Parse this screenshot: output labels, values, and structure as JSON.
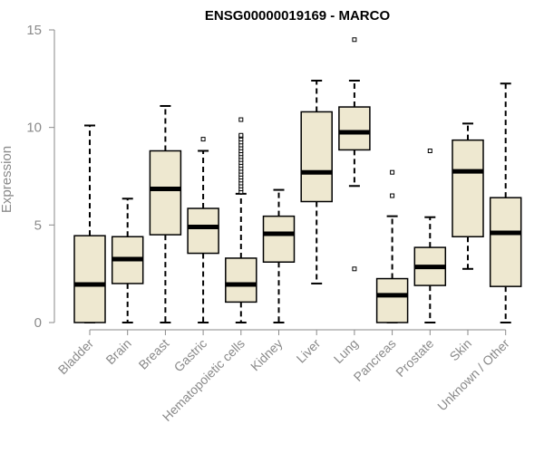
{
  "chart_data": {
    "type": "box",
    "title": "ENSG00000019169 - MARCO",
    "xlabel": "",
    "ylabel": "Expression",
    "ylim": [
      0,
      15
    ],
    "yticks": [
      "0",
      "5",
      "10",
      "15"
    ],
    "grid": false,
    "box_color": "#EEE8D0",
    "categories": [
      "Bladder",
      "Brain",
      "Breast",
      "Gastric",
      "Hematopoietic cells",
      "Kidney",
      "Liver",
      "Lung",
      "Pancreas",
      "Prostate",
      "Skin",
      "Unknown / Other"
    ],
    "boxes": [
      {
        "whislo": 0.0,
        "q1": 0.0,
        "med": 1.95,
        "q3": 4.45,
        "whishi": 10.1,
        "fliers": []
      },
      {
        "whislo": 0.0,
        "q1": 2.0,
        "med": 3.25,
        "q3": 4.4,
        "whishi": 6.35,
        "fliers": []
      },
      {
        "whislo": 0.0,
        "q1": 4.5,
        "med": 6.85,
        "q3": 8.8,
        "whishi": 11.1,
        "fliers": []
      },
      {
        "whislo": 0.0,
        "q1": 3.55,
        "med": 4.9,
        "q3": 5.85,
        "whishi": 8.8,
        "fliers": [
          9.4
        ]
      },
      {
        "whislo": 0.0,
        "q1": 1.05,
        "med": 1.95,
        "q3": 3.3,
        "whishi": 6.6,
        "fliers": [
          6.7,
          6.85,
          7.0,
          7.15,
          7.3,
          7.45,
          7.6,
          7.75,
          7.9,
          8.05,
          8.2,
          8.35,
          8.5,
          8.65,
          8.8,
          8.95,
          9.1,
          9.25,
          9.4,
          9.55,
          9.6,
          10.4
        ]
      },
      {
        "whislo": 0.0,
        "q1": 3.1,
        "med": 4.55,
        "q3": 5.45,
        "whishi": 6.8,
        "fliers": []
      },
      {
        "whislo": 2.0,
        "q1": 6.2,
        "med": 7.7,
        "q3": 10.8,
        "whishi": 12.4,
        "fliers": []
      },
      {
        "whislo": 7.0,
        "q1": 8.85,
        "med": 9.75,
        "q3": 11.05,
        "whishi": 12.4,
        "fliers": [
          2.75,
          14.5
        ]
      },
      {
        "whislo": 0.0,
        "q1": 0.0,
        "med": 1.4,
        "q3": 2.25,
        "whishi": 5.45,
        "fliers": [
          6.5,
          7.7
        ]
      },
      {
        "whislo": 0.0,
        "q1": 1.9,
        "med": 2.85,
        "q3": 3.85,
        "whishi": 5.4,
        "fliers": [
          8.8
        ]
      },
      {
        "whislo": 2.75,
        "q1": 4.4,
        "med": 7.75,
        "q3": 9.35,
        "whishi": 10.2,
        "fliers": []
      },
      {
        "whislo": 0.0,
        "q1": 1.85,
        "med": 4.6,
        "q3": 6.4,
        "whishi": 12.25,
        "fliers": []
      }
    ]
  }
}
